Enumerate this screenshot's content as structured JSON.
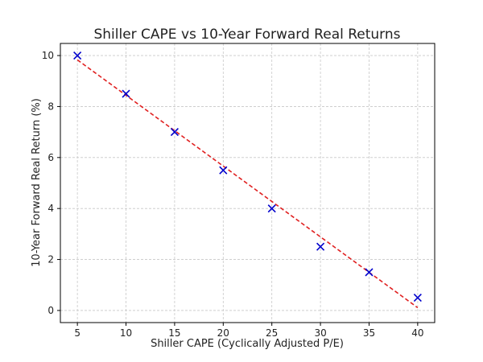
{
  "chart_data": {
    "type": "scatter",
    "title": "Shiller CAPE vs 10-Year Forward Real Returns",
    "xlabel": "Shiller CAPE (Cyclically Adjusted P/E)",
    "ylabel": "10-Year Forward Real Return (%)",
    "xlim": [
      3.25,
      41.75
    ],
    "ylim": [
      -0.475,
      10.475
    ],
    "xticks": [
      5,
      10,
      15,
      20,
      25,
      30,
      35,
      40
    ],
    "yticks": [
      0,
      2,
      4,
      6,
      8,
      10
    ],
    "grid": true,
    "series": [
      {
        "type": "scatter",
        "marker": "x",
        "color": "#0000cc",
        "x": [
          5,
          10,
          15,
          20,
          25,
          30,
          35,
          40
        ],
        "y": [
          10,
          8.5,
          7,
          5.5,
          4,
          2.5,
          1.5,
          0.5
        ]
      },
      {
        "type": "line",
        "style": "dashed",
        "color": "#e02020",
        "x": [
          5,
          40
        ],
        "y": [
          9.83,
          0.11
        ]
      }
    ]
  }
}
